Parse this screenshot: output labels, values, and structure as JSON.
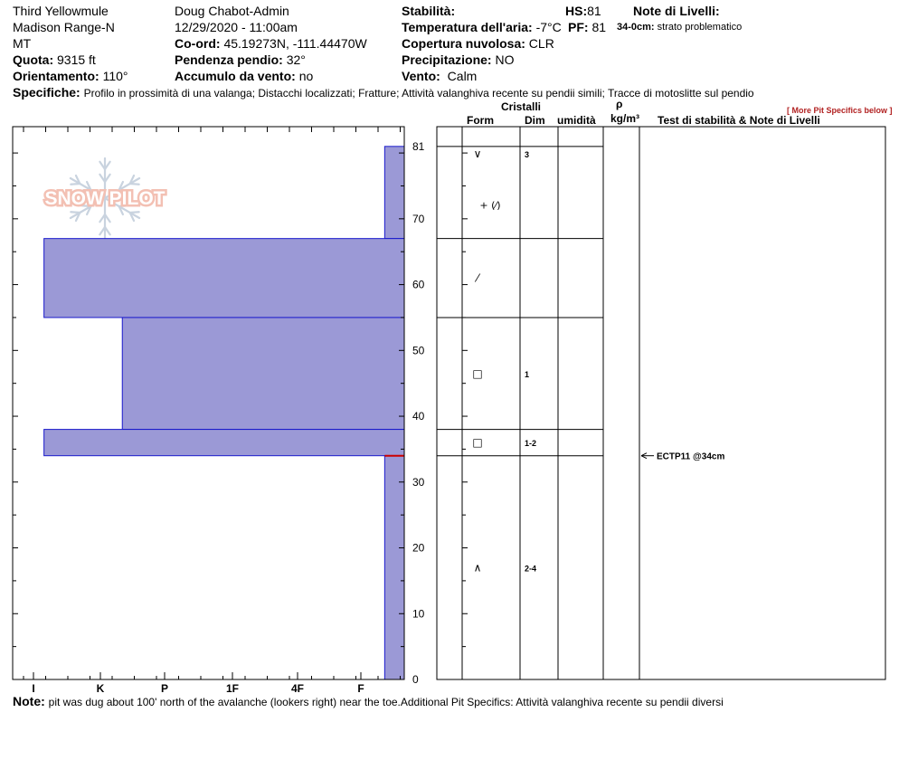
{
  "header": {
    "location_name": "Third Yellowmule",
    "range": "Madison Range-N",
    "state": "MT",
    "elevation_label": "Quota:",
    "elevation_value": "9315 ft",
    "aspect_label": "Orientamento:",
    "aspect_value": "110°",
    "observer": "Doug Chabot-Admin",
    "datetime": "12/29/2020 - 11:00am",
    "coord_label": "Co-ord:",
    "coord_value": "45.19273N, -111.44470W",
    "slope_label": "Pendenza pendio:",
    "slope_value": "32°",
    "wind_loading_label": "Accumulo da vento:",
    "wind_loading_value": "no",
    "stability_label": "Stabilità:",
    "air_temp_label": "Temperatura dell'aria:",
    "air_temp_value": "-7°C",
    "sky_label": "Copertura nuvolosa:",
    "sky_value": "CLR",
    "precip_label": "Precipitazione:",
    "precip_value": "NO",
    "wind_label": "Vento:",
    "wind_value": "Calm",
    "hs_label": "HS:",
    "hs_value": "81",
    "pf_label": "PF:",
    "pf_value": "81",
    "layer_notes_label": "Note di Livelli:",
    "layer_note_depth": "34-0cm:",
    "layer_note_text": "strato problematico",
    "specifics_label": "Specifiche:",
    "specifics_value": "Profilo in prossimità di una valanga;  Distacchi localizzati;  Fratture;  Attività valanghiva recente su pendii simili;  Tracce di motoslitte sul pendio",
    "more_specifics": "[ More Pit Specifics below ]"
  },
  "logo_text": "SNOW PILOT",
  "columns": {
    "crystals": "Cristalli",
    "form": "Form",
    "size": "Dim",
    "moisture": "umidità",
    "rho": "ρ",
    "density_unit": "kg/m³",
    "tests": "Test di stabilità & Note di Livelli"
  },
  "footer": {
    "note_label": "Note:",
    "note_text": "pit was dug about 100' north of the avalanche (lookers right) near the toe.Additional Pit Specifics: Attività valanghiva recente su pendii diversi"
  },
  "colors": {
    "hardness_fill": "#9b99d6",
    "hardness_stroke": "#1a1acc",
    "weak_layer": "#cc0000",
    "logo": "#f3c0b3"
  },
  "chart_data": {
    "type": "bar",
    "title": "",
    "xlabel": "",
    "ylabel": "",
    "y_unit": "cm",
    "ylim": [
      0,
      84
    ],
    "y_ticks": [
      0,
      10,
      20,
      30,
      40,
      50,
      60,
      70,
      81
    ],
    "hardness_scale": [
      "I",
      "K",
      "P",
      "1F",
      "4F",
      "F"
    ],
    "layers": [
      {
        "top": 81,
        "bottom": 67,
        "hardness": "F",
        "form": "∨",
        "size": "3"
      },
      {
        "top": 67,
        "bottom": 55,
        "hardness": "4F",
        "form": "⁄",
        "size": ""
      },
      {
        "top": 55,
        "bottom": 38,
        "hardness": "4F-",
        "form": "□",
        "size": "1"
      },
      {
        "top": 38,
        "bottom": 34,
        "hardness": "4F",
        "form": "□",
        "size": "1-2"
      },
      {
        "top": 34,
        "bottom": 0,
        "hardness": "F",
        "form": "∧",
        "size": "2-4"
      }
    ],
    "hardness_values": [
      0.05,
      0.92,
      0.72,
      0.92,
      0.05
    ],
    "extra_form_on_layer1": "+ (⁄)",
    "weak_layer_depth": 34,
    "tests": [
      {
        "depth": 34,
        "label": "ECTP11 @34cm"
      }
    ]
  }
}
